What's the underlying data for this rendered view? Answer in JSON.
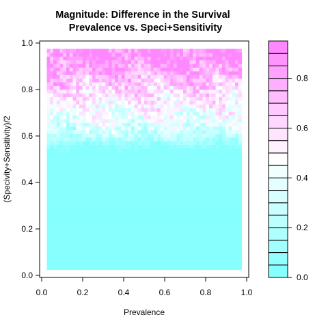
{
  "chart_data": {
    "type": "heatmap",
    "title_line1": "Magnitude: Difference in the Survival",
    "title_line2": "Prevalence vs. Speci+Sensitivity",
    "xlabel": "Prevalence",
    "ylabel": "(Specivity+Sensitivity)/2",
    "xlim": [
      0.0,
      1.0
    ],
    "ylim": [
      0.0,
      1.0
    ],
    "x_ticks": [
      "0.0",
      "0.2",
      "0.4",
      "0.6",
      "0.8",
      "1.0"
    ],
    "y_ticks": [
      "0.0",
      "0.2",
      "0.4",
      "0.6",
      "0.8",
      "1.0"
    ],
    "data_extent": {
      "x": [
        0.025,
        0.975
      ],
      "y": [
        0.025,
        0.975
      ]
    },
    "colorbar": {
      "range": [
        0.0,
        0.95
      ],
      "levels": 19,
      "ticks": [
        "0.0",
        "0.2",
        "0.4",
        "0.6",
        "0.8"
      ],
      "low_color": "#80FFFF",
      "mid_color": "#FFFFFF",
      "high_color": "#FF80FF"
    },
    "magnitude_profile": [
      {
        "y": 0.025,
        "value": 0.0
      },
      {
        "y": 0.55,
        "value": 0.02
      },
      {
        "y": 0.62,
        "value": 0.3
      },
      {
        "y": 0.7,
        "value": 0.45
      },
      {
        "y": 0.8,
        "value": 0.62
      },
      {
        "y": 0.88,
        "value": 0.8
      },
      {
        "y": 0.975,
        "value": 0.93
      }
    ]
  }
}
